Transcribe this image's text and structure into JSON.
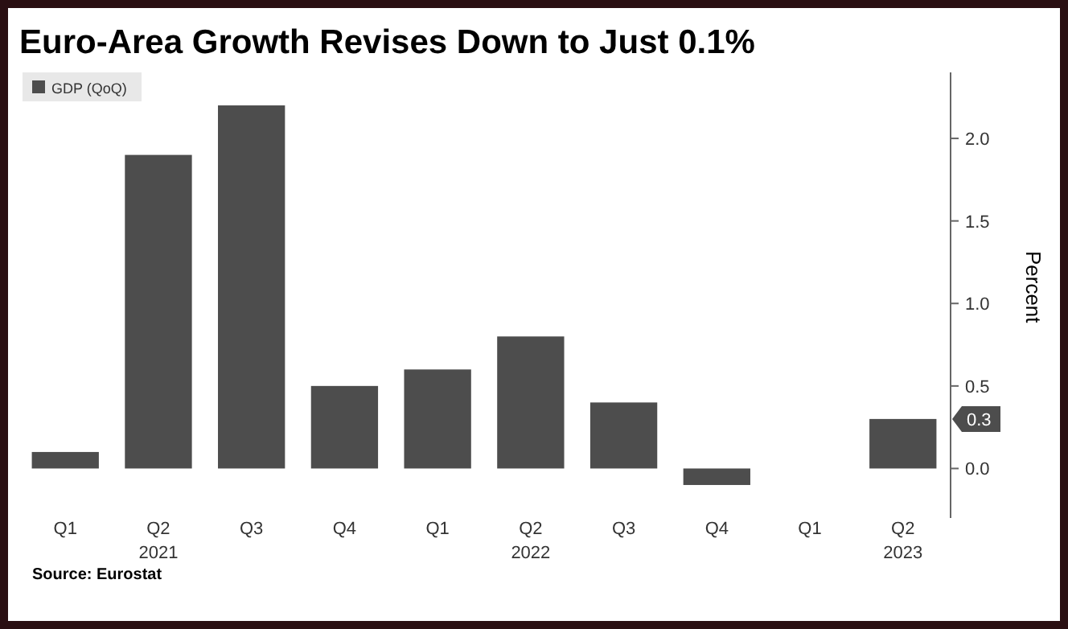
{
  "chart_data": {
    "type": "bar",
    "title": "Euro-Area Growth Revises Down to Just 0.1%",
    "ylabel": "Percent",
    "categories": [
      "Q1",
      "Q2",
      "Q3",
      "Q4",
      "Q1",
      "Q2",
      "Q3",
      "Q4",
      "Q1",
      "Q2"
    ],
    "series": [
      {
        "name": "GDP (QoQ)",
        "color": "#4d4d4d",
        "values": [
          0.1,
          1.9,
          2.2,
          0.5,
          0.6,
          0.8,
          0.4,
          -0.1,
          0.0,
          0.3
        ]
      }
    ],
    "value_labels": [
      null,
      null,
      null,
      null,
      null,
      null,
      null,
      null,
      null,
      "0.3"
    ],
    "ylim": [
      -0.3,
      2.4
    ],
    "yticks": [
      {
        "value": 0,
        "label": "0.0"
      },
      0.5,
      {
        "value": 1,
        "label": "1.0"
      },
      1.5,
      {
        "value": 2,
        "label": "2.0"
      }
    ],
    "legend": "top left",
    "annotations": [
      "2021",
      "2022",
      "2023",
      "Source: Eurostat"
    ]
  }
}
